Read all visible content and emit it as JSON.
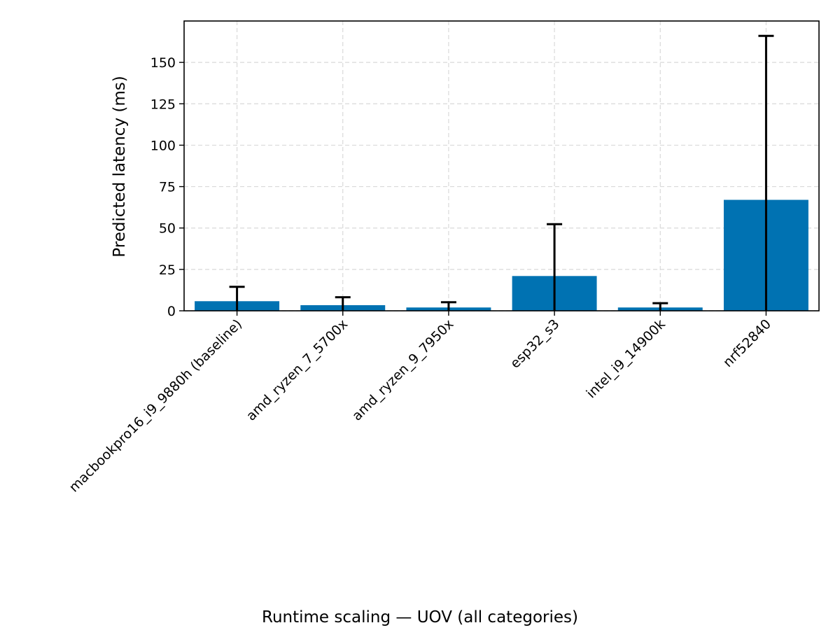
{
  "chart_data": {
    "type": "bar",
    "categories": [
      "macbookpro16_i9_9880h (baseline)",
      "amd_ryzen_7_5700x",
      "amd_ryzen_9_7950x",
      "esp32_s3",
      "intel_i9_14900k",
      "nrf52840"
    ],
    "values": [
      5.8,
      3.4,
      2.0,
      21.0,
      2.0,
      67.0
    ],
    "error_upper": [
      14.5,
      8.2,
      5.2,
      52.3,
      4.6,
      166.0
    ],
    "error_lower": [
      0,
      0,
      0,
      0,
      0,
      0
    ],
    "xlabel": "",
    "ylabel": "Predicted latency (ms)",
    "caption": "Runtime scaling — UOV (all categories)",
    "ylim": [
      0,
      175
    ],
    "yticks": [
      0,
      25,
      50,
      75,
      100,
      125,
      150
    ],
    "grid": true,
    "bar_color": "#0072b2",
    "error_color": "#000000",
    "grid_color": "#d9d9d9"
  }
}
